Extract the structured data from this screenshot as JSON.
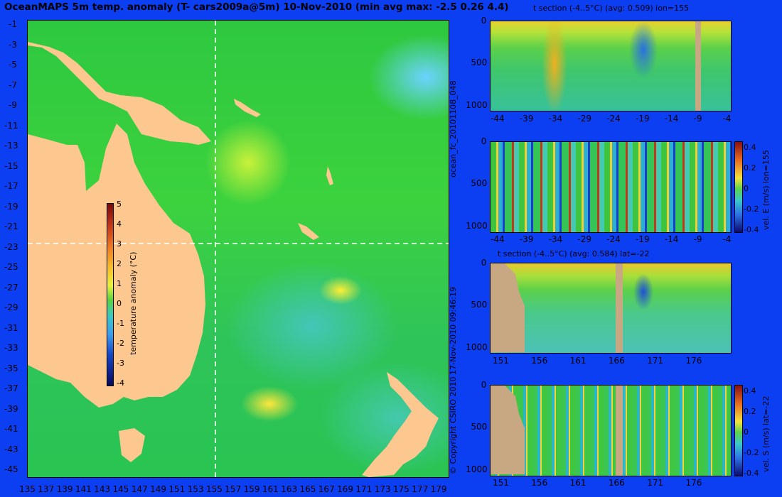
{
  "title": "OceanMAPS 5m temp. anomaly (T- cars2009a@5m) 10-Nov-2010 (min avg max: -2.5 0.26 4.4)",
  "map": {
    "lat_labels": [
      "-1",
      "-3",
      "-5",
      "-7",
      "-9",
      "-11",
      "-13",
      "-15",
      "-17",
      "-19",
      "-21",
      "-23",
      "-25",
      "-27",
      "-29",
      "-31",
      "-33",
      "-35",
      "-37",
      "-39",
      "-41",
      "-43",
      "-45"
    ],
    "lon_labels": [
      "135",
      "137",
      "139",
      "141",
      "143",
      "145",
      "147",
      "149",
      "151",
      "153",
      "155",
      "157",
      "159",
      "161",
      "163",
      "165",
      "167",
      "169",
      "171",
      "173",
      "175",
      "177",
      "179"
    ],
    "colorbar": {
      "label": "temperature anomaly (°C)",
      "ticks": [
        "5",
        "4",
        "3",
        "2",
        "1",
        "0",
        "-1",
        "-2",
        "-3",
        "-4"
      ]
    }
  },
  "side_text": {
    "left_top": "ocean_fc_20101108_048",
    "left_bottom": "17-Nov-2010 09:46:19",
    "copyright": "© Copyright CSIRO 2010"
  },
  "panels": [
    {
      "title": "t section (-4..5°C) (avg: 0.509) lon=155",
      "y_ticks": [
        "0",
        "500",
        "1000"
      ],
      "x_ticks": [
        "-44",
        "-39",
        "-34",
        "-29",
        "-24",
        "-19",
        "-14",
        "-9",
        "-4"
      ]
    },
    {
      "title": "",
      "y_ticks": [
        "0",
        "500",
        "1000"
      ],
      "x_ticks": [
        "-44",
        "-39",
        "-34",
        "-29",
        "-24",
        "-19",
        "-14",
        "-9",
        "-4"
      ],
      "colorbar": {
        "label": "vel. E (m/s) lon=155",
        "ticks": [
          "0.4",
          "0.2",
          "0",
          "-0.2",
          "-0.4"
        ]
      }
    },
    {
      "title": "t section (-4..5°C) (avg: 0.584) lat=-22",
      "y_ticks": [
        "0",
        "500",
        "1000"
      ],
      "x_ticks": [
        "151",
        "156",
        "161",
        "166",
        "171",
        "176"
      ]
    },
    {
      "title": "",
      "y_ticks": [
        "0",
        "500",
        "1000"
      ],
      "x_ticks": [
        "151",
        "156",
        "161",
        "166",
        "171",
        "176"
      ],
      "colorbar": {
        "label": "vel. S (m/s) lat=-22",
        "ticks": [
          "0.4",
          "0.2",
          "0",
          "-0.2",
          "-0.4"
        ]
      }
    }
  ]
}
